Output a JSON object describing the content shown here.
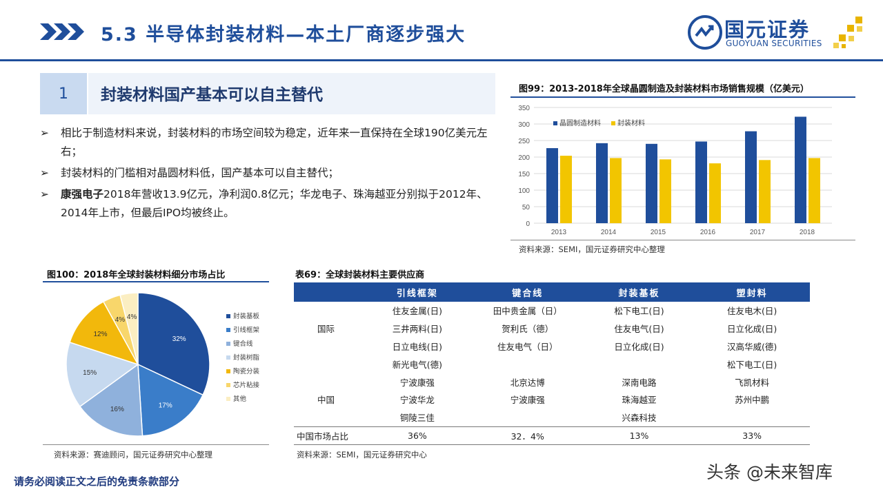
{
  "header": {
    "title": "5.3 半导体封装材料—本土厂商逐步强大",
    "logo_cn": "国元证券",
    "logo_en": "GUOYUAN SECURITIES"
  },
  "section": {
    "number": "1",
    "title": "封装材料国产基本可以自主替代"
  },
  "bullets": {
    "marker": "➢",
    "b1": "相比于制造材料来说，封装材料的市场空间较为稳定，近年来一直保持在全球190亿美元左右；",
    "b2": "封装材料的门槛相对晶圆材料低，国产基本可以自主替代；",
    "b3_bold": "康强电子",
    "b3_rest": "2018年营收13.9亿元，净利润0.8亿元；华龙电子、珠海越亚分别拟于2012年、2014年上市，但最后IPO均被终止。"
  },
  "fig99": {
    "title": "图99：2013-2018年全球晶圆制造及封装材料市场销售规模（亿美元）",
    "source": "资料来源：SEMI，国元证券研究中心整理"
  },
  "fig100": {
    "title": "图100：2018年全球封装材料细分市场占比",
    "source": "资料来源：赛迪顾问，国元证券研究中心整理"
  },
  "table69": {
    "title": "表69：全球封装材料主要供应商",
    "headers": [
      "",
      "引线框架",
      "键合线",
      "封装基板",
      "塑封料"
    ],
    "rows": [
      [
        "",
        "住友金属(日)",
        "田中贵金属（日）",
        "松下电工(日)",
        "住友电木(日)"
      ],
      [
        "国际",
        "三井两料(日)",
        "贺利氏（德）",
        "住友电气(日)",
        "日立化成(日)"
      ],
      [
        "",
        "日立电线(日)",
        "住友电气（日）",
        "日立化成(日)",
        "汉高华威(德)"
      ],
      [
        "",
        "新光电气(德)",
        "",
        "",
        "松下电工(日)"
      ],
      [
        "",
        "宁波康强",
        "北京达博",
        "深南电路",
        "飞凯材料"
      ],
      [
        "中国",
        "宁波华龙",
        "宁波康强",
        "珠海越亚",
        "苏州中鹏"
      ],
      [
        "",
        "铜陵三佳",
        "",
        "兴森科技",
        ""
      ],
      [
        "中国市场占比",
        "36%",
        "32．4%",
        "13%",
        "33%"
      ]
    ],
    "source": "资料来源：SEMI，国元证券研究中心"
  },
  "footer": {
    "note": "请务必阅读正文之后的免责条款部分",
    "watermark": "头条 @未来智库"
  },
  "chart_data": [
    {
      "type": "bar",
      "title": "图99：2013-2018年全球晶圆制造及封装材料市场销售规模（亿美元）",
      "categories": [
        "2013",
        "2014",
        "2015",
        "2016",
        "2017",
        "2018"
      ],
      "series": [
        {
          "name": "晶圆制造材料",
          "color": "#1f4e9b",
          "values": [
            227,
            242,
            240,
            247,
            278,
            322
          ]
        },
        {
          "name": "封装材料",
          "color": "#f2c500",
          "values": [
            204,
            197,
            193,
            181,
            191,
            197
          ]
        }
      ],
      "ylim": [
        0,
        350
      ],
      "yticks": [
        0,
        50,
        100,
        150,
        200,
        250,
        300,
        350
      ],
      "legend": "top-left",
      "grid": true
    },
    {
      "type": "pie",
      "title": "图100：2018年全球封装材料细分市场占比",
      "labels": [
        "封装基板",
        "引线框架",
        "键合线",
        "封装树脂",
        "陶瓷分装",
        "芯片粘接",
        "其他"
      ],
      "values": [
        32,
        17,
        16,
        15,
        12,
        4,
        4
      ],
      "value_labels": [
        "32%",
        "17%",
        "16%",
        "15%",
        "12%",
        "4%",
        "4%"
      ],
      "colors": [
        "#1f4e9b",
        "#3a7dc9",
        "#8fb1dc",
        "#c6d9ef",
        "#f2b80c",
        "#f8d66b",
        "#fbeec2"
      ],
      "legend": "right"
    }
  ]
}
